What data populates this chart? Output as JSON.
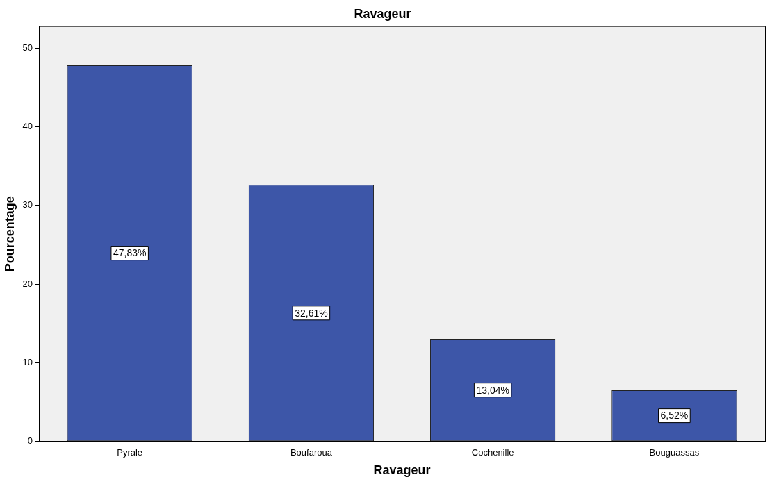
{
  "chart_data": {
    "type": "bar",
    "title": "Ravageur",
    "xlabel": "Ravageur",
    "ylabel": "Pourcentage",
    "categories": [
      "Pyrale",
      "Boufaroua",
      "Cochenille",
      "Bouguassas"
    ],
    "values": [
      47.83,
      32.61,
      13.04,
      6.52
    ],
    "value_labels": [
      "47,83%",
      "32,61%",
      "13,04%",
      "6,52%"
    ],
    "color": "#3d56a8",
    "ylim": [
      0,
      52.8
    ],
    "yticks": [
      0,
      10,
      20,
      30,
      40,
      50
    ],
    "grid": false,
    "legend": false
  }
}
